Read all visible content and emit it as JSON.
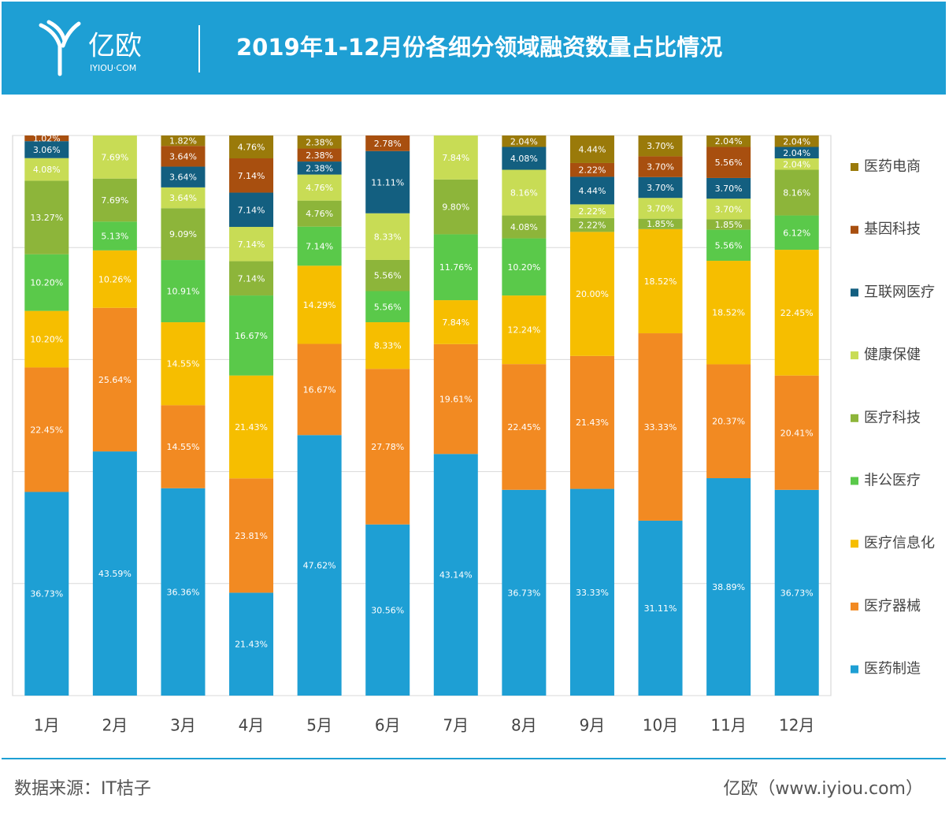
{
  "header": {
    "logo": "亿欧",
    "logo_sub": "IYIOU·COM"
  },
  "chart_data": {
    "type": "bar",
    "stacking": "percent",
    "title": "2019年1-12月份各细分领域融资数量占比情况",
    "categories": [
      "1月",
      "2月",
      "3月",
      "4月",
      "5月",
      "6月",
      "7月",
      "8月",
      "9月",
      "10月",
      "11月",
      "12月"
    ],
    "ylim": [
      0,
      100
    ],
    "yticks": [
      0,
      20,
      40,
      60,
      80,
      100
    ],
    "grid": true,
    "series": [
      {
        "name": "医药制造",
        "color": "#1e9fd4",
        "values": [
          36.73,
          43.59,
          36.36,
          21.43,
          47.62,
          30.56,
          43.14,
          36.73,
          33.33,
          31.11,
          38.89,
          36.73
        ],
        "value_labels": [
          "36.73%",
          "43.59%",
          "36.36%",
          "21.43%",
          "47.62%",
          "30.56%",
          "43.14%",
          "36.73%",
          "33.33%",
          "31.11%",
          "38.89%",
          "36.73%"
        ]
      },
      {
        "name": "医疗器械",
        "color": "#f28a22",
        "values": [
          22.45,
          25.64,
          14.55,
          23.81,
          16.67,
          27.78,
          19.61,
          22.45,
          21.43,
          33.33,
          20.37,
          20.41
        ],
        "value_labels": [
          "22.45%",
          "25.64%",
          "14.55%",
          "23.81%",
          "16.67%",
          "27.78%",
          "19.61%",
          "22.45%",
          "21.43%",
          "33.33%",
          "20.37%",
          "20.41%"
        ]
      },
      {
        "name": "医疗信息化",
        "color": "#f6be00",
        "values": [
          10.2,
          10.26,
          14.55,
          21.43,
          14.29,
          8.33,
          7.84,
          12.24,
          20.0,
          18.52,
          18.52,
          22.45
        ],
        "value_labels": [
          "10.20%",
          "10.26%",
          "14.55%",
          "21.43%",
          "14.29%",
          "8.33%",
          "7.84%",
          "12.24%",
          "20.00%",
          "18.52%",
          "18.52%",
          "22.45%"
        ]
      },
      {
        "name": "非公医疗",
        "color": "#5ac94a",
        "values": [
          10.2,
          5.13,
          10.91,
          16.67,
          7.14,
          5.56,
          11.76,
          10.2,
          null,
          null,
          5.56,
          6.12
        ],
        "value_labels": [
          "10.20%",
          "5.13%",
          "10.91%",
          "16.67%",
          "7.14%",
          "5.56%",
          "11.76%",
          "10.20%",
          null,
          null,
          "5.56%",
          "6.12%"
        ]
      },
      {
        "name": "医疗科技",
        "color": "#8db53a",
        "values": [
          13.27,
          7.69,
          9.09,
          7.14,
          4.76,
          5.56,
          9.8,
          4.08,
          2.22,
          1.85,
          1.85,
          8.16
        ],
        "value_labels": [
          "13.27%",
          "7.69%",
          "9.09%",
          "7.14%",
          "4.76%",
          "5.56%",
          "9.80%",
          "4.08%",
          "2.22%",
          "1.85%",
          "1.85%",
          "8.16%"
        ]
      },
      {
        "name": "健康保健",
        "color": "#c8dc55",
        "values": [
          4.08,
          7.69,
          3.64,
          7.14,
          4.76,
          8.33,
          7.84,
          8.16,
          2.22,
          3.7,
          3.7,
          2.04
        ],
        "value_labels": [
          "4.08%",
          "7.69%",
          "3.64%",
          "7.14%",
          "4.76%",
          "8.33%",
          "7.84%",
          "8.16%",
          "2.22%",
          "3.70%",
          "3.70%",
          "2.04%"
        ]
      },
      {
        "name": "互联网医疗",
        "color": "#135f80",
        "values": [
          3.06,
          null,
          3.64,
          7.14,
          2.38,
          11.11,
          null,
          4.08,
          4.44,
          3.7,
          3.7,
          2.04
        ],
        "value_labels": [
          "3.06%",
          null,
          "3.64%",
          "7.14%",
          "2.38%",
          "11.11%",
          null,
          "4.08%",
          "4.44%",
          "3.70%",
          "3.70%",
          "2.04%"
        ]
      },
      {
        "name": "基因科技",
        "color": "#a84f0f",
        "values": [
          1.02,
          null,
          3.64,
          7.14,
          2.38,
          2.78,
          null,
          null,
          2.22,
          3.7,
          5.56,
          null
        ],
        "value_labels": [
          "1.02%",
          null,
          "3.64%",
          "7.14%",
          "2.38%",
          "2.78%",
          null,
          null,
          "2.22%",
          "3.70%",
          "5.56%",
          null
        ]
      },
      {
        "name": "医药电商",
        "color": "#9a7a0a",
        "values": [
          null,
          null,
          1.82,
          4.76,
          2.38,
          null,
          null,
          2.04,
          4.44,
          3.7,
          2.04,
          2.04
        ],
        "value_labels": [
          null,
          null,
          "1.82%",
          "4.76%",
          "2.38%",
          null,
          null,
          "2.04%",
          "4.44%",
          "3.70%",
          "2.04%",
          "2.04%"
        ]
      }
    ]
  },
  "footer": {
    "source": "数据来源：IT桔子",
    "credit": "亿欧（www.iyiou.com）"
  }
}
